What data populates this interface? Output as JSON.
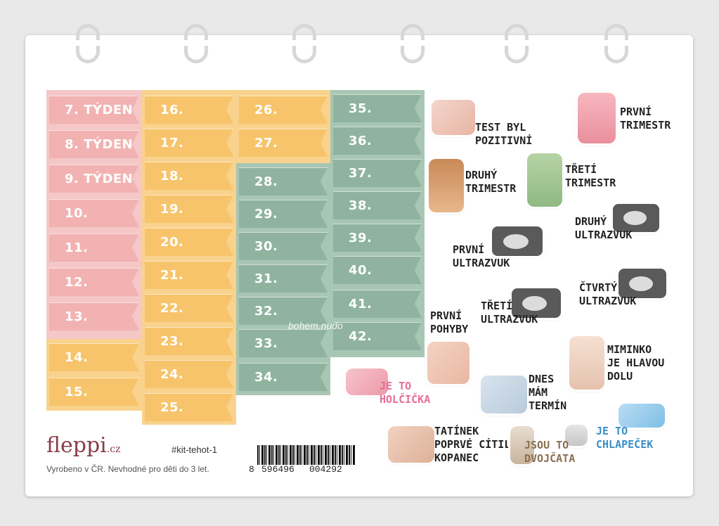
{
  "columns": {
    "pink": [
      "7. TÝDEN",
      "8. TÝDEN",
      "9. TÝDEN",
      "10. TÝDEN",
      "11. TÝDEN",
      "12. TÝDEN",
      "13. TÝDEN"
    ],
    "orange_left": [
      "14. TÝDEN",
      "15. TÝDEN"
    ],
    "orange": [
      "16. TÝDEN",
      "17. TÝDEN",
      "18. TÝDEN",
      "19. TÝDEN",
      "20. TÝDEN",
      "21. TÝDEN",
      "22. TÝDEN",
      "23. TÝDEN",
      "24. TÝDEN",
      "25. TÝDEN"
    ],
    "orange_small": [
      "26. TÝDEN",
      "27. TÝDEN"
    ],
    "green_mid": [
      "28. TÝDEN",
      "29. TÝDEN",
      "30. TÝDEN",
      "31. TÝDEN",
      "32. TÝDEN",
      "33. TÝDEN",
      "34. TÝDEN"
    ],
    "green_right": [
      "35. TÝDEN",
      "36. TÝDEN",
      "37. TÝDEN",
      "38. TÝDEN",
      "39. TÝDEN",
      "40. TÝDEN",
      "41. TÝDEN",
      "42. TÝDEN"
    ]
  },
  "stickers": {
    "test": "TEST BYL\nPOZITIVNÍ",
    "prvni_trimestr": "PRVNÍ\nTRIMESTR",
    "druhy_trimestr": "DRUHÝ\nTRIMESTR",
    "treti_trimestr": "TŘETÍ\nTRIMESTR",
    "druhy_ultrazvuk": "DRUHÝ\nULTRAZVUK",
    "prvni_ultrazvuk": "PRVNÍ\nULTRAZVUK",
    "ctvrty_ultrazvuk": "ČTVRTÝ\nULTRAZVUK",
    "treti_ultrazvuk": "TŘETÍ\nULTRAZVUK",
    "prvni_pohyby": "PRVNÍ\nPOHYBY",
    "miminko": "MIMINKO\nJE HLAVOU\nDOLU",
    "holcicka": "JE TO\nHOLČIČKA",
    "termin": "DNES\nMÁM\nTERMÍN",
    "chlapecek": "JE TO\nCHLAPEČEK",
    "tatinek": "TATÍNEK\nPOPRVÉ CÍTIL\nKOPANEC",
    "dvojcata": "JSOU TO\nDVOJČATA"
  },
  "footer": {
    "brand": "fleppi",
    "brand_suffix": ".cz",
    "kit": "#kit-tehot-1",
    "made_in": "Vyrobeno v ČR. Nevhodné pro děti do 3 let.",
    "barcode_digit": "8",
    "barcode_left": "596496",
    "barcode_right": "004292",
    "watermark": "bohem.nudo"
  },
  "colors": {
    "pink": "#f2b2b2",
    "orange": "#f7c46b",
    "green": "#8fb39f",
    "brand": "#8a3b4a"
  }
}
